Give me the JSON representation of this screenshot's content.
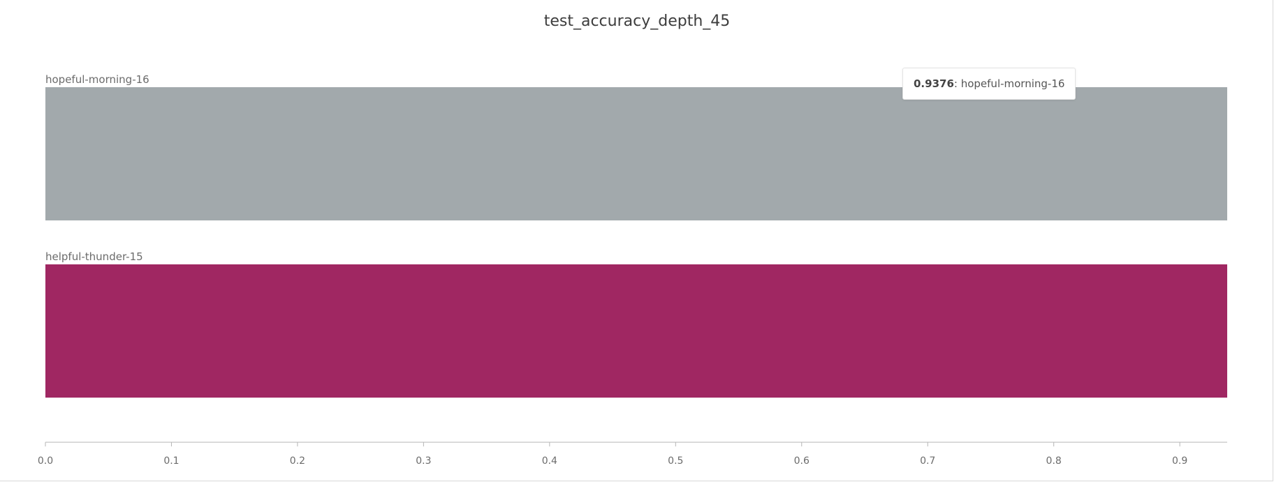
{
  "chart_data": {
    "type": "bar",
    "orientation": "horizontal",
    "title": "test_accuracy_depth_45",
    "categories": [
      "hopeful-morning-16",
      "helpful-thunder-15"
    ],
    "values": [
      0.9376,
      0.9376
    ],
    "colors": [
      "#a2a9ac",
      "#a02762"
    ],
    "xlim": [
      0,
      0.9376
    ],
    "xticks": [
      0,
      0.1,
      0.2,
      0.3,
      0.4,
      0.5,
      0.6,
      0.7,
      0.8,
      0.9
    ],
    "xtick_labels": [
      "0.0",
      "0.1",
      "0.2",
      "0.3",
      "0.4",
      "0.5",
      "0.6",
      "0.7",
      "0.8",
      "0.9"
    ],
    "grid": false
  },
  "tooltip": {
    "value": "0.9376",
    "separator": ": ",
    "label": "hopeful-morning-16"
  },
  "colors": {
    "axis": "#b5b5b5",
    "text": "#6b6b6b"
  }
}
